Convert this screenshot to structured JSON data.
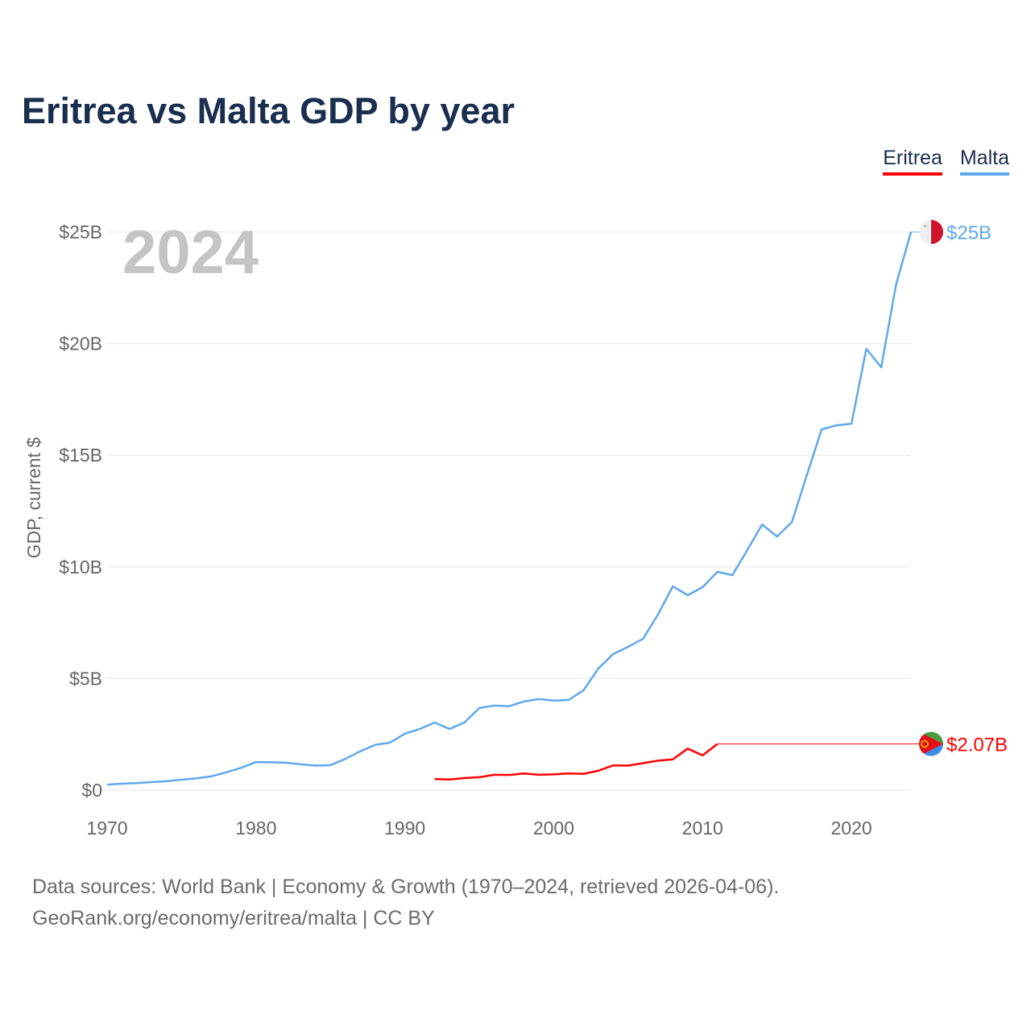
{
  "title": "Eritrea vs Malta GDP by year",
  "legend": [
    {
      "label": "Eritrea",
      "color": "#ff0000"
    },
    {
      "label": "Malta",
      "color": "#5ea8ec"
    }
  ],
  "year_watermark": "2024",
  "footer": {
    "line1": "Data sources: World Bank | Economy & Growth (1970–2024, retrieved 2026-04-06).",
    "line2": "GeoRank.org/economy/eritrea/malta | CC BY"
  },
  "chart_data": {
    "type": "line",
    "title": "Eritrea vs Malta GDP by year",
    "xlabel": "",
    "ylabel": "GDP, current $",
    "xlim": [
      1970,
      2024
    ],
    "ylim": [
      0,
      25
    ],
    "x_ticks": [
      1970,
      1980,
      1990,
      2000,
      2010,
      2020
    ],
    "x_tick_labels": [
      "1970",
      "1980",
      "1990",
      "2000",
      "2010",
      "2020"
    ],
    "y_ticks": [
      0,
      5,
      10,
      15,
      20,
      25
    ],
    "y_tick_labels": [
      "$0",
      "$5B",
      "$10B",
      "$15B",
      "$20B",
      "$25B"
    ],
    "grid": true,
    "legend_position": "top-right",
    "series": [
      {
        "name": "Malta",
        "color": "#5ea8ec",
        "end_label": "$25B",
        "x": [
          1970,
          1971,
          1972,
          1973,
          1974,
          1975,
          1976,
          1977,
          1978,
          1979,
          1980,
          1981,
          1982,
          1983,
          1984,
          1985,
          1986,
          1987,
          1988,
          1989,
          1990,
          1991,
          1992,
          1993,
          1994,
          1995,
          1996,
          1997,
          1998,
          1999,
          2000,
          2001,
          2002,
          2003,
          2004,
          2005,
          2006,
          2007,
          2008,
          2009,
          2010,
          2011,
          2012,
          2013,
          2014,
          2015,
          2016,
          2017,
          2018,
          2019,
          2020,
          2021,
          2022,
          2023,
          2024
        ],
        "values": [
          0.25,
          0.29,
          0.32,
          0.36,
          0.4,
          0.47,
          0.53,
          0.62,
          0.8,
          1.0,
          1.26,
          1.25,
          1.23,
          1.16,
          1.1,
          1.12,
          1.4,
          1.74,
          2.03,
          2.13,
          2.53,
          2.74,
          3.03,
          2.74,
          3.03,
          3.68,
          3.79,
          3.76,
          3.97,
          4.08,
          4.01,
          4.04,
          4.47,
          5.45,
          6.1,
          6.42,
          6.78,
          7.86,
          9.13,
          8.73,
          9.09,
          9.78,
          9.63,
          10.75,
          11.9,
          11.36,
          12.01,
          14.1,
          16.16,
          16.34,
          16.41,
          19.77,
          18.94,
          22.65,
          25.0
        ]
      },
      {
        "name": "Eritrea",
        "color": "#ff0000",
        "end_label": "$2.07B",
        "x": [
          1992,
          1993,
          1994,
          1995,
          1996,
          1997,
          1998,
          1999,
          2000,
          2001,
          2002,
          2003,
          2004,
          2005,
          2006,
          2007,
          2008,
          2009,
          2010,
          2011
        ],
        "values": [
          0.5,
          0.48,
          0.54,
          0.58,
          0.69,
          0.68,
          0.75,
          0.69,
          0.71,
          0.75,
          0.73,
          0.87,
          1.11,
          1.1,
          1.21,
          1.32,
          1.38,
          1.86,
          1.56,
          2.07
        ],
        "carried_forward_to": 2024
      }
    ]
  }
}
